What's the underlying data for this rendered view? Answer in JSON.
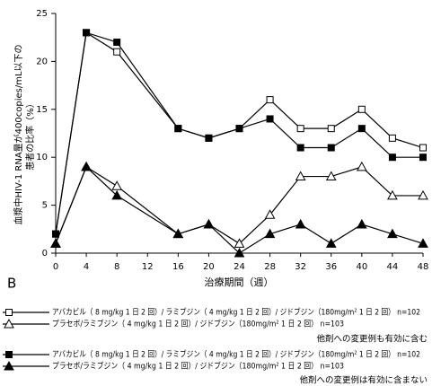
{
  "chart_data": {
    "type": "line",
    "panel_label": "B",
    "xlabel": "治療期間（週）",
    "ylabel": [
      "血漿中HIV-1 RNA量が400copies/mL以下の",
      "患者の比率（%）"
    ],
    "x": [
      0,
      4,
      8,
      16,
      20,
      24,
      28,
      32,
      36,
      40,
      44,
      48
    ],
    "xlim": [
      0,
      48
    ],
    "xticks": [
      0,
      4,
      8,
      12,
      16,
      20,
      24,
      28,
      32,
      36,
      40,
      44,
      48
    ],
    "ylim": [
      0,
      25
    ],
    "yticks": [
      0,
      5,
      10,
      15,
      20,
      25
    ],
    "series": [
      {
        "name": "アバカビル（ 8 mg/kg 1 日 2 回）/ ラミブジン（ 4 mg/kg 1 日 2 回）/ ジドブジン（180mg/m² 1 日 2 回） n=102",
        "color": "#000000",
        "marker": "square",
        "filled": false,
        "values": [
          2,
          23,
          21,
          13,
          12,
          13,
          16,
          13,
          13,
          15,
          12,
          11
        ]
      },
      {
        "name": "プラセボ/ラミブジン（ 4 mg/kg 1 日 2 回）/ ジドブジン（180mg/m² 1 日 2 回） n=103",
        "color": "#000000",
        "marker": "triangle",
        "filled": false,
        "values": [
          1,
          9,
          7,
          2,
          3,
          1,
          4,
          8,
          8,
          9,
          6,
          6
        ]
      },
      {
        "name": "アバカビル（ 8 mg/kg 1 日 2 回）/ ラミブジン（ 4 mg/kg 1 日 2 回）/ ジドブジン（180mg/m² 1 日 2 回） n=102",
        "color": "#000000",
        "marker": "square",
        "filled": true,
        "values": [
          2,
          23,
          22,
          13,
          12,
          13,
          14,
          11,
          11,
          13,
          10,
          10
        ]
      },
      {
        "name": "プラセボ/ラミブジン（ 4 mg/kg 1 日 2 回）/ ジドブジン（180mg/m² 1 日 2 回） n=103",
        "color": "#000000",
        "marker": "triangle",
        "filled": true,
        "values": [
          1,
          9,
          6,
          2,
          3,
          0,
          2,
          3,
          1,
          3,
          2,
          1
        ]
      }
    ],
    "notes": [
      "他剤への変更例も有効に含む",
      "他剤への変更例は有効に含まない"
    ]
  }
}
